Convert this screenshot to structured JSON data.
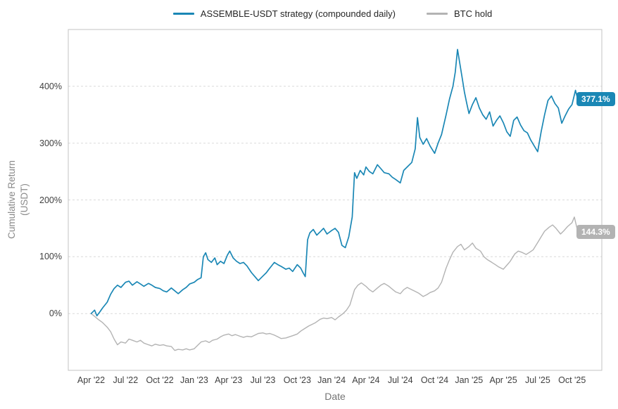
{
  "legend": {
    "strategy_label": "ASSEMBLE-USDT strategy (compounded daily)",
    "btc_label": "BTC hold"
  },
  "axes": {
    "x_label": "Date",
    "y_label_line1": "Cumulative Return",
    "y_label_line2": "(USDT)"
  },
  "colors": {
    "strategy": "#1a87b5",
    "btc": "#b3b3b3",
    "grid": "#dadada",
    "border": "#c3c3c3",
    "tick_text": "#3f3f3f",
    "axis_label_text": "#8a8a8a",
    "badge_text": "#ffffff"
  },
  "chart_data": {
    "type": "line",
    "title": "",
    "xlabel": "Date",
    "ylabel": "Cumulative Return (USDT)",
    "x_unit": "months since Apr 2022",
    "xlim": [
      -2,
      44.6
    ],
    "ylim": [
      -100,
      500
    ],
    "grid": "horizontal dashed",
    "legend_position": "top center",
    "y_ticks": [
      0,
      100,
      200,
      300,
      400
    ],
    "y_tick_labels": [
      "0%",
      "100%",
      "200%",
      "300%",
      "400%"
    ],
    "x_tick_months": [
      0,
      3,
      6,
      9,
      12,
      15,
      18,
      21,
      24,
      27,
      30,
      33,
      36,
      39,
      42
    ],
    "x_tick_labels": [
      "Apr '22",
      "Jul '22",
      "Oct '22",
      "Jan '23",
      "Apr '23",
      "Jul '23",
      "Oct '23",
      "Jan '24",
      "Apr '24",
      "Jul '24",
      "Oct '24",
      "Jan '25",
      "Apr '25",
      "Jul '25",
      "Oct '25"
    ],
    "series": [
      {
        "name": "ASSEMBLE-USDT strategy (compounded daily)",
        "color": "#1a87b5",
        "final_value_percent": 377.1,
        "final_label": "377.1%",
        "points": [
          [
            0,
            0
          ],
          [
            0.3,
            6
          ],
          [
            0.5,
            -4
          ],
          [
            0.8,
            4
          ],
          [
            1,
            10
          ],
          [
            1.4,
            20
          ],
          [
            1.7,
            34
          ],
          [
            2,
            44
          ],
          [
            2.3,
            50
          ],
          [
            2.6,
            46
          ],
          [
            3,
            55
          ],
          [
            3.3,
            57
          ],
          [
            3.6,
            50
          ],
          [
            4,
            56
          ],
          [
            4.3,
            52
          ],
          [
            4.6,
            48
          ],
          [
            5,
            53
          ],
          [
            5.3,
            50
          ],
          [
            5.6,
            46
          ],
          [
            6,
            44
          ],
          [
            6.3,
            40
          ],
          [
            6.6,
            38
          ],
          [
            7,
            45
          ],
          [
            7.3,
            40
          ],
          [
            7.6,
            35
          ],
          [
            8,
            42
          ],
          [
            8.3,
            46
          ],
          [
            8.6,
            52
          ],
          [
            9,
            55
          ],
          [
            9.3,
            60
          ],
          [
            9.6,
            63
          ],
          [
            9.8,
            100
          ],
          [
            10,
            107
          ],
          [
            10.2,
            95
          ],
          [
            10.5,
            90
          ],
          [
            10.8,
            98
          ],
          [
            11,
            86
          ],
          [
            11.3,
            92
          ],
          [
            11.6,
            88
          ],
          [
            11.9,
            103
          ],
          [
            12.1,
            110
          ],
          [
            12.4,
            98
          ],
          [
            12.7,
            92
          ],
          [
            13,
            88
          ],
          [
            13.3,
            90
          ],
          [
            13.6,
            84
          ],
          [
            14,
            72
          ],
          [
            14.3,
            65
          ],
          [
            14.6,
            58
          ],
          [
            15,
            66
          ],
          [
            15.3,
            72
          ],
          [
            15.6,
            80
          ],
          [
            16,
            90
          ],
          [
            16.3,
            86
          ],
          [
            16.6,
            83
          ],
          [
            17,
            78
          ],
          [
            17.3,
            80
          ],
          [
            17.6,
            74
          ],
          [
            18,
            86
          ],
          [
            18.3,
            80
          ],
          [
            18.5,
            72
          ],
          [
            18.7,
            65
          ],
          [
            18.9,
            130
          ],
          [
            19.1,
            142
          ],
          [
            19.4,
            148
          ],
          [
            19.7,
            138
          ],
          [
            20,
            144
          ],
          [
            20.3,
            150
          ],
          [
            20.6,
            140
          ],
          [
            21,
            146
          ],
          [
            21.3,
            150
          ],
          [
            21.6,
            143
          ],
          [
            21.9,
            120
          ],
          [
            22.2,
            116
          ],
          [
            22.5,
            135
          ],
          [
            22.8,
            170
          ],
          [
            23,
            248
          ],
          [
            23.2,
            238
          ],
          [
            23.5,
            252
          ],
          [
            23.8,
            244
          ],
          [
            24,
            258
          ],
          [
            24.3,
            250
          ],
          [
            24.6,
            246
          ],
          [
            25,
            262
          ],
          [
            25.3,
            255
          ],
          [
            25.6,
            248
          ],
          [
            26,
            246
          ],
          [
            26.3,
            240
          ],
          [
            26.6,
            236
          ],
          [
            27,
            230
          ],
          [
            27.3,
            252
          ],
          [
            27.6,
            258
          ],
          [
            28,
            266
          ],
          [
            28.3,
            290
          ],
          [
            28.5,
            345
          ],
          [
            28.7,
            310
          ],
          [
            29,
            298
          ],
          [
            29.3,
            308
          ],
          [
            29.6,
            295
          ],
          [
            30,
            282
          ],
          [
            30.3,
            300
          ],
          [
            30.6,
            315
          ],
          [
            31,
            350
          ],
          [
            31.3,
            378
          ],
          [
            31.6,
            400
          ],
          [
            31.8,
            425
          ],
          [
            32,
            465
          ],
          [
            32.2,
            440
          ],
          [
            32.4,
            415
          ],
          [
            32.6,
            390
          ],
          [
            32.8,
            370
          ],
          [
            33,
            352
          ],
          [
            33.3,
            368
          ],
          [
            33.6,
            380
          ],
          [
            33.9,
            362
          ],
          [
            34.2,
            350
          ],
          [
            34.5,
            342
          ],
          [
            34.8,
            355
          ],
          [
            35.1,
            330
          ],
          [
            35.4,
            340
          ],
          [
            35.7,
            348
          ],
          [
            36,
            336
          ],
          [
            36.3,
            320
          ],
          [
            36.6,
            312
          ],
          [
            36.9,
            340
          ],
          [
            37.2,
            346
          ],
          [
            37.5,
            332
          ],
          [
            37.8,
            322
          ],
          [
            38.1,
            318
          ],
          [
            38.4,
            305
          ],
          [
            38.7,
            295
          ],
          [
            39,
            285
          ],
          [
            39.3,
            320
          ],
          [
            39.6,
            350
          ],
          [
            39.9,
            375
          ],
          [
            40.2,
            383
          ],
          [
            40.5,
            370
          ],
          [
            40.8,
            362
          ],
          [
            41.1,
            335
          ],
          [
            41.4,
            348
          ],
          [
            41.7,
            360
          ],
          [
            42,
            368
          ],
          [
            42.3,
            393
          ],
          [
            42.5,
            377.1
          ]
        ]
      },
      {
        "name": "BTC hold",
        "color": "#b3b3b3",
        "final_value_percent": 144.3,
        "final_label": "144.3%",
        "points": [
          [
            0,
            0
          ],
          [
            0.3,
            -5
          ],
          [
            0.6,
            -10
          ],
          [
            1,
            -16
          ],
          [
            1.4,
            -24
          ],
          [
            1.7,
            -32
          ],
          [
            2,
            -45
          ],
          [
            2.3,
            -55
          ],
          [
            2.6,
            -50
          ],
          [
            3,
            -52
          ],
          [
            3.3,
            -45
          ],
          [
            3.6,
            -47
          ],
          [
            4,
            -50
          ],
          [
            4.3,
            -47
          ],
          [
            4.6,
            -52
          ],
          [
            5,
            -55
          ],
          [
            5.3,
            -57
          ],
          [
            5.6,
            -54
          ],
          [
            6,
            -56
          ],
          [
            6.3,
            -55
          ],
          [
            6.6,
            -57
          ],
          [
            7,
            -58
          ],
          [
            7.3,
            -65
          ],
          [
            7.6,
            -63
          ],
          [
            8,
            -64
          ],
          [
            8.3,
            -62
          ],
          [
            8.6,
            -64
          ],
          [
            9,
            -62
          ],
          [
            9.3,
            -56
          ],
          [
            9.6,
            -50
          ],
          [
            10,
            -48
          ],
          [
            10.3,
            -51
          ],
          [
            10.6,
            -47
          ],
          [
            11,
            -45
          ],
          [
            11.3,
            -41
          ],
          [
            11.6,
            -38
          ],
          [
            12,
            -36
          ],
          [
            12.3,
            -39
          ],
          [
            12.6,
            -37
          ],
          [
            13,
            -40
          ],
          [
            13.3,
            -42
          ],
          [
            13.6,
            -40
          ],
          [
            14,
            -41
          ],
          [
            14.3,
            -38
          ],
          [
            14.6,
            -35
          ],
          [
            15,
            -34
          ],
          [
            15.3,
            -36
          ],
          [
            15.6,
            -35
          ],
          [
            16,
            -38
          ],
          [
            16.3,
            -41
          ],
          [
            16.6,
            -44
          ],
          [
            17,
            -43
          ],
          [
            17.3,
            -41
          ],
          [
            17.6,
            -39
          ],
          [
            18,
            -36
          ],
          [
            18.3,
            -31
          ],
          [
            18.6,
            -27
          ],
          [
            19,
            -22
          ],
          [
            19.3,
            -19
          ],
          [
            19.6,
            -16
          ],
          [
            20,
            -10
          ],
          [
            20.3,
            -8
          ],
          [
            20.6,
            -9
          ],
          [
            21,
            -7
          ],
          [
            21.3,
            -11
          ],
          [
            21.6,
            -6
          ],
          [
            22,
            0
          ],
          [
            22.3,
            6
          ],
          [
            22.6,
            15
          ],
          [
            23,
            42
          ],
          [
            23.3,
            50
          ],
          [
            23.6,
            54
          ],
          [
            24,
            48
          ],
          [
            24.3,
            42
          ],
          [
            24.6,
            38
          ],
          [
            25,
            45
          ],
          [
            25.3,
            50
          ],
          [
            25.6,
            53
          ],
          [
            26,
            48
          ],
          [
            26.3,
            43
          ],
          [
            26.6,
            38
          ],
          [
            27,
            35
          ],
          [
            27.3,
            42
          ],
          [
            27.6,
            46
          ],
          [
            28,
            42
          ],
          [
            28.3,
            39
          ],
          [
            28.6,
            36
          ],
          [
            29,
            30
          ],
          [
            29.3,
            33
          ],
          [
            29.6,
            37
          ],
          [
            30,
            40
          ],
          [
            30.3,
            45
          ],
          [
            30.6,
            55
          ],
          [
            31,
            80
          ],
          [
            31.3,
            95
          ],
          [
            31.6,
            108
          ],
          [
            32,
            118
          ],
          [
            32.3,
            122
          ],
          [
            32.6,
            112
          ],
          [
            33,
            118
          ],
          [
            33.3,
            124
          ],
          [
            33.6,
            115
          ],
          [
            34,
            110
          ],
          [
            34.3,
            100
          ],
          [
            34.6,
            95
          ],
          [
            35,
            90
          ],
          [
            35.3,
            86
          ],
          [
            35.6,
            82
          ],
          [
            36,
            78
          ],
          [
            36.3,
            85
          ],
          [
            36.6,
            92
          ],
          [
            37,
            105
          ],
          [
            37.3,
            110
          ],
          [
            37.6,
            108
          ],
          [
            38,
            104
          ],
          [
            38.3,
            108
          ],
          [
            38.6,
            112
          ],
          [
            39,
            125
          ],
          [
            39.3,
            135
          ],
          [
            39.6,
            145
          ],
          [
            40,
            152
          ],
          [
            40.3,
            156
          ],
          [
            40.6,
            150
          ],
          [
            41,
            140
          ],
          [
            41.3,
            146
          ],
          [
            41.6,
            153
          ],
          [
            42,
            160
          ],
          [
            42.2,
            170
          ],
          [
            42.5,
            144.3
          ]
        ]
      }
    ]
  }
}
